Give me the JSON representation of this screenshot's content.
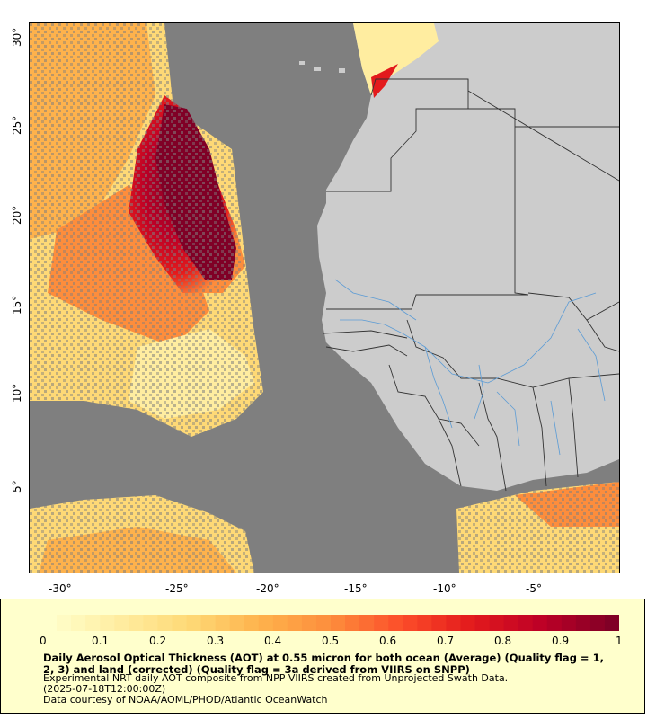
{
  "map": {
    "colors": {
      "ocean_nodata": "#7f7f7f",
      "land": "#cccccc",
      "border": "#333333",
      "river": "#5b9bd5"
    },
    "lon_labels": [
      "-30°",
      "-25°",
      "-20°",
      "-15°",
      "-10°",
      "-5°"
    ],
    "lat_labels": [
      "30°",
      "25°",
      "20°",
      "15°",
      "10°",
      "5°"
    ],
    "extent": {
      "lon_min": -33.3,
      "lon_max": -0.3,
      "lat_min": 0.3,
      "lat_max": 31
    }
  },
  "legend": {
    "scale_min": 0,
    "scale_max": 1,
    "tick_labels": [
      "0",
      "0.1",
      "0.2",
      "0.3",
      "0.4",
      "0.5",
      "0.6",
      "0.7",
      "0.8",
      "0.9",
      "1"
    ],
    "palette": [
      "#ffffcc",
      "#ffeda0",
      "#fed976",
      "#feb24c",
      "#fd8d3c",
      "#fc4e2a",
      "#e31a1c",
      "#bd0026",
      "#800026"
    ],
    "title": "Daily Aerosol Optical Thickness (AOT) at 0.55 micron for both ocean (Average) (Quality flag = 1, 2, 3) and land (corrected) (Quality flag = 3a derived from VIIRS on SNPP)",
    "line1": "Experimental NRT daily AOT composite from NPP VIIRS created from Unprojected Swath Data.",
    "line2": "(2025-07-18T12:00:00Z)",
    "line3": "Data courtesy of NOAA/AOML/PHOD/Atlantic OceanWatch"
  }
}
